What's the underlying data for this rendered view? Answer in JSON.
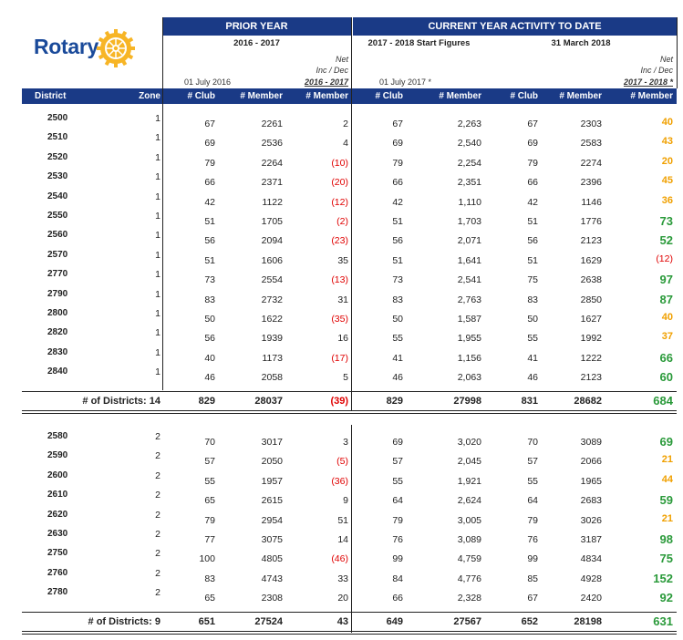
{
  "brand": {
    "name": "Rotary",
    "wheel_color": "#f7b526",
    "text_color": "#1a4a9a"
  },
  "header": {
    "prior_year": "PRIOR YEAR",
    "current_year": "CURRENT YEAR ACTIVITY TO DATE",
    "period_prior": "2016 - 2017",
    "period_start": "2017 - 2018 Start Figures",
    "period_current": "31 March 2018",
    "date_prior": "01 July 2016",
    "date_start": "01 July 2017 *",
    "net_label": "Net",
    "net_sub": "Inc / Dec",
    "net_prior_period": "2016 - 2017",
    "net_current_period": "2017 - 2018 *"
  },
  "columns": {
    "district": "District",
    "zone": "Zone",
    "club": "# Club",
    "member": "# Member"
  },
  "colors": {
    "header_bg": "#1a3a86",
    "negative": "#e00000",
    "orange": "#f0a000",
    "green": "#2a9a3a"
  },
  "groups": [
    {
      "rows": [
        {
          "district": "2500",
          "zone": "1",
          "pc": "67",
          "pm": "2261",
          "pn": "2",
          "sc": "67",
          "sm": "2,263",
          "cc": "67",
          "cm": "2303",
          "cn": "40",
          "cn_style": "orange"
        },
        {
          "district": "2510",
          "zone": "1",
          "pc": "69",
          "pm": "2536",
          "pn": "4",
          "sc": "69",
          "sm": "2,540",
          "cc": "69",
          "cm": "2583",
          "cn": "43",
          "cn_style": "orange"
        },
        {
          "district": "2520",
          "zone": "1",
          "pc": "79",
          "pm": "2264",
          "pn": "(10)",
          "sc": "79",
          "sm": "2,254",
          "cc": "79",
          "cm": "2274",
          "cn": "20",
          "cn_style": "orange"
        },
        {
          "district": "2530",
          "zone": "1",
          "pc": "66",
          "pm": "2371",
          "pn": "(20)",
          "sc": "66",
          "sm": "2,351",
          "cc": "66",
          "cm": "2396",
          "cn": "45",
          "cn_style": "orange"
        },
        {
          "district": "2540",
          "zone": "1",
          "pc": "42",
          "pm": "1122",
          "pn": "(12)",
          "sc": "42",
          "sm": "1,110",
          "cc": "42",
          "cm": "1146",
          "cn": "36",
          "cn_style": "orange"
        },
        {
          "district": "2550",
          "zone": "1",
          "pc": "51",
          "pm": "1705",
          "pn": "(2)",
          "sc": "51",
          "sm": "1,703",
          "cc": "51",
          "cm": "1776",
          "cn": "73",
          "cn_style": "green"
        },
        {
          "district": "2560",
          "zone": "1",
          "pc": "56",
          "pm": "2094",
          "pn": "(23)",
          "sc": "56",
          "sm": "2,071",
          "cc": "56",
          "cm": "2123",
          "cn": "52",
          "cn_style": "green"
        },
        {
          "district": "2570",
          "zone": "1",
          "pc": "51",
          "pm": "1606",
          "pn": "35",
          "sc": "51",
          "sm": "1,641",
          "cc": "51",
          "cm": "1629",
          "cn": "(12)",
          "cn_style": "neg"
        },
        {
          "district": "2770",
          "zone": "1",
          "pc": "73",
          "pm": "2554",
          "pn": "(13)",
          "sc": "73",
          "sm": "2,541",
          "cc": "75",
          "cm": "2638",
          "cn": "97",
          "cn_style": "green"
        },
        {
          "district": "2790",
          "zone": "1",
          "pc": "83",
          "pm": "2732",
          "pn": "31",
          "sc": "83",
          "sm": "2,763",
          "cc": "83",
          "cm": "2850",
          "cn": "87",
          "cn_style": "green"
        },
        {
          "district": "2800",
          "zone": "1",
          "pc": "50",
          "pm": "1622",
          "pn": "(35)",
          "sc": "50",
          "sm": "1,587",
          "cc": "50",
          "cm": "1627",
          "cn": "40",
          "cn_style": "orange"
        },
        {
          "district": "2820",
          "zone": "1",
          "pc": "56",
          "pm": "1939",
          "pn": "16",
          "sc": "55",
          "sm": "1,955",
          "cc": "55",
          "cm": "1992",
          "cn": "37",
          "cn_style": "orange"
        },
        {
          "district": "2830",
          "zone": "1",
          "pc": "40",
          "pm": "1173",
          "pn": "(17)",
          "sc": "41",
          "sm": "1,156",
          "cc": "41",
          "cm": "1222",
          "cn": "66",
          "cn_style": "green"
        },
        {
          "district": "2840",
          "zone": "1",
          "pc": "46",
          "pm": "2058",
          "pn": "5",
          "sc": "46",
          "sm": "2,063",
          "cc": "46",
          "cm": "2123",
          "cn": "60",
          "cn_style": "green"
        }
      ],
      "total": {
        "label": "# of Districts: 14",
        "pc": "829",
        "pm": "28037",
        "pn": "(39)",
        "sc": "829",
        "sm": "27998",
        "cc": "831",
        "cm": "28682",
        "cn": "684"
      }
    },
    {
      "rows": [
        {
          "district": "2580",
          "zone": "2",
          "pc": "70",
          "pm": "3017",
          "pn": "3",
          "sc": "69",
          "sm": "3,020",
          "cc": "70",
          "cm": "3089",
          "cn": "69",
          "cn_style": "green"
        },
        {
          "district": "2590",
          "zone": "2",
          "pc": "57",
          "pm": "2050",
          "pn": "(5)",
          "sc": "57",
          "sm": "2,045",
          "cc": "57",
          "cm": "2066",
          "cn": "21",
          "cn_style": "orange"
        },
        {
          "district": "2600",
          "zone": "2",
          "pc": "55",
          "pm": "1957",
          "pn": "(36)",
          "sc": "55",
          "sm": "1,921",
          "cc": "55",
          "cm": "1965",
          "cn": "44",
          "cn_style": "orange"
        },
        {
          "district": "2610",
          "zone": "2",
          "pc": "65",
          "pm": "2615",
          "pn": "9",
          "sc": "64",
          "sm": "2,624",
          "cc": "64",
          "cm": "2683",
          "cn": "59",
          "cn_style": "green"
        },
        {
          "district": "2620",
          "zone": "2",
          "pc": "79",
          "pm": "2954",
          "pn": "51",
          "sc": "79",
          "sm": "3,005",
          "cc": "79",
          "cm": "3026",
          "cn": "21",
          "cn_style": "orange"
        },
        {
          "district": "2630",
          "zone": "2",
          "pc": "77",
          "pm": "3075",
          "pn": "14",
          "sc": "76",
          "sm": "3,089",
          "cc": "76",
          "cm": "3187",
          "cn": "98",
          "cn_style": "green"
        },
        {
          "district": "2750",
          "zone": "2",
          "pc": "100",
          "pm": "4805",
          "pn": "(46)",
          "sc": "99",
          "sm": "4,759",
          "cc": "99",
          "cm": "4834",
          "cn": "75",
          "cn_style": "green"
        },
        {
          "district": "2760",
          "zone": "2",
          "pc": "83",
          "pm": "4743",
          "pn": "33",
          "sc": "84",
          "sm": "4,776",
          "cc": "85",
          "cm": "4928",
          "cn": "152",
          "cn_style": "green"
        },
        {
          "district": "2780",
          "zone": "2",
          "pc": "65",
          "pm": "2308",
          "pn": "20",
          "sc": "66",
          "sm": "2,328",
          "cc": "67",
          "cm": "2420",
          "cn": "92",
          "cn_style": "green"
        }
      ],
      "total": {
        "label": "# of Districts: 9",
        "pc": "651",
        "pm": "27524",
        "pn": "43",
        "sc": "649",
        "sm": "27567",
        "cc": "652",
        "cm": "28198",
        "cn": "631"
      }
    }
  ]
}
